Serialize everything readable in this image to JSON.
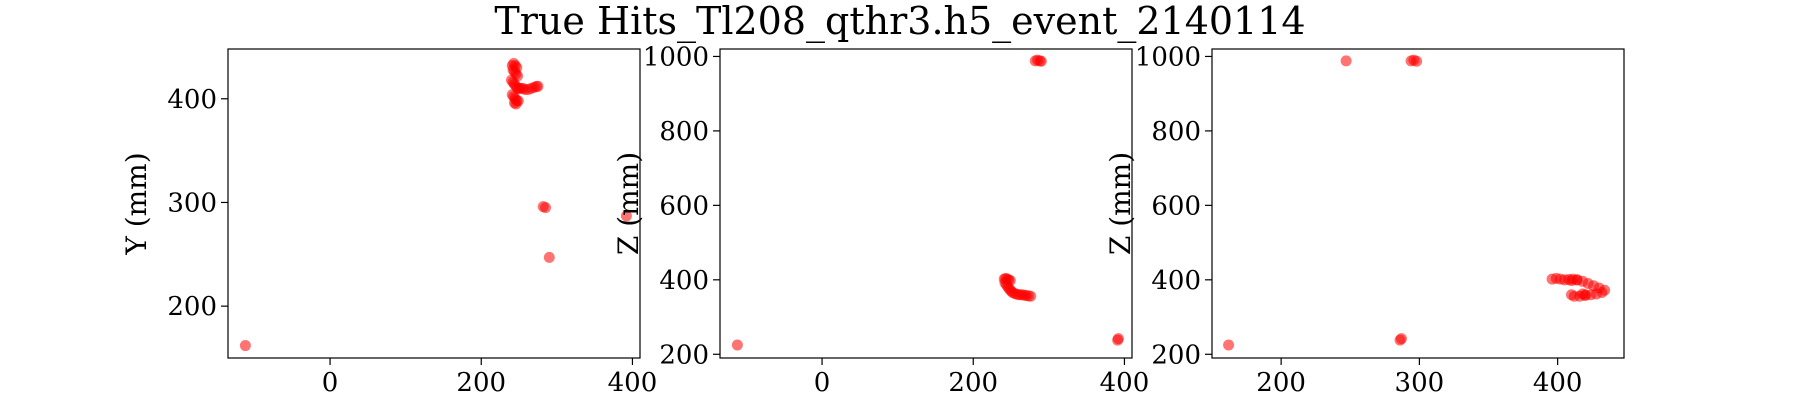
{
  "figure_title": "True Hits_Tl208_qthr3.h5_event_2140114",
  "colors": {
    "points": "#ff0000",
    "axes": "#000000",
    "background": "#ffffff"
  },
  "chart_data": [
    {
      "type": "scatter",
      "title": "",
      "xlabel": "",
      "ylabel": "Y (mm)",
      "xlim": [
        -135,
        410
      ],
      "ylim": [
        150,
        448
      ],
      "xticks": [
        0,
        200,
        400
      ],
      "yticks": [
        200,
        300,
        400
      ],
      "grid": false,
      "series": [
        {
          "color": "#ff0000",
          "x": [
            -112,
            241,
            243,
            245,
            247,
            242,
            244,
            246,
            248,
            240,
            242,
            244,
            246,
            248,
            250,
            252,
            255,
            258,
            262,
            266,
            270,
            273,
            275,
            241,
            243,
            245,
            247,
            249,
            244,
            246,
            282,
            285,
            290,
            392
          ],
          "y": [
            162,
            432,
            434,
            432,
            430,
            428,
            426,
            424,
            422,
            418,
            416,
            414,
            412,
            410,
            410,
            410,
            410,
            409,
            409,
            410,
            411,
            412,
            412,
            404,
            402,
            400,
            398,
            398,
            396,
            395,
            296,
            295,
            247,
            287
          ]
        }
      ]
    },
    {
      "type": "scatter",
      "title": "",
      "xlabel": "",
      "ylabel": "Z (mm)",
      "xlim": [
        -135,
        410
      ],
      "ylim": [
        190,
        1020
      ],
      "xticks": [
        0,
        200,
        400
      ],
      "yticks": [
        200,
        400,
        600,
        800,
        1000
      ],
      "grid": false,
      "series": [
        {
          "color": "#ff0000",
          "x": [
            -112,
            282,
            285,
            288,
            290,
            241,
            243,
            245,
            247,
            249,
            242,
            244,
            246,
            248,
            250,
            252,
            255,
            258,
            261,
            264,
            267,
            270,
            273,
            276,
            392,
            391
          ],
          "y": [
            225,
            988,
            990,
            988,
            987,
            402,
            404,
            402,
            400,
            398,
            392,
            386,
            380,
            375,
            370,
            366,
            363,
            361,
            360,
            360,
            359,
            358,
            357,
            356,
            242,
            238
          ]
        }
      ]
    },
    {
      "type": "scatter",
      "title": "",
      "xlabel": "",
      "ylabel": "Z (mm)",
      "xlim": [
        150,
        448
      ],
      "ylim": [
        190,
        1020
      ],
      "xticks": [
        200,
        300,
        400
      ],
      "yticks": [
        200,
        400,
        600,
        800,
        1000
      ],
      "grid": false,
      "series": [
        {
          "color": "#ff0000",
          "x": [
            162,
            247,
            294,
            296,
            298,
            287,
            286,
            396,
            399,
            402,
            405,
            408,
            411,
            414,
            410,
            412,
            416,
            420,
            424,
            428,
            432,
            434,
            430,
            426,
            422,
            418,
            414,
            410,
            420,
            418
          ],
          "y": [
            225,
            988,
            988,
            990,
            987,
            242,
            238,
            402,
            404,
            402,
            400,
            401,
            402,
            400,
            360,
            356,
            356,
            358,
            360,
            362,
            366,
            372,
            378,
            384,
            390,
            396,
            400,
            398,
            360,
            362
          ]
        }
      ]
    }
  ]
}
